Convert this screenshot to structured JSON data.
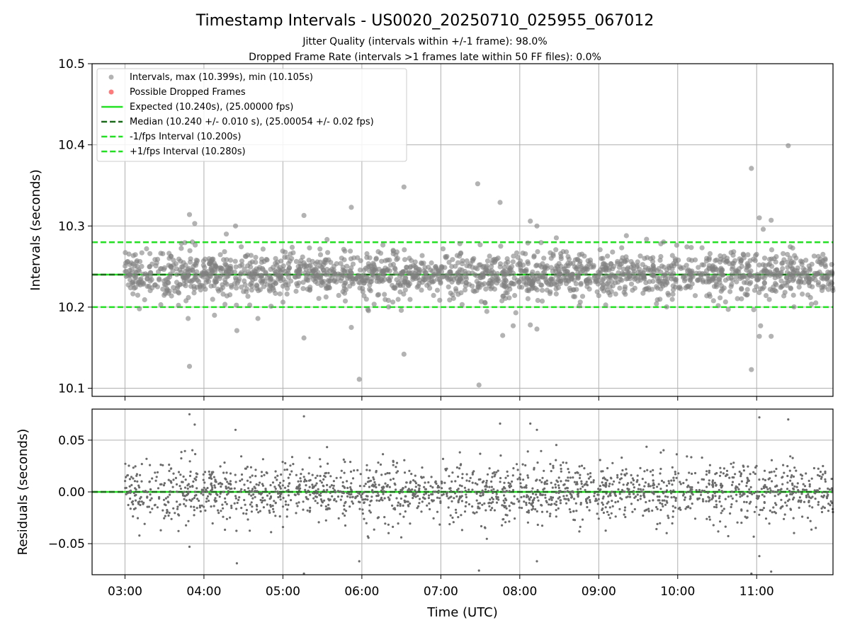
{
  "chart_data": [
    {
      "type": "scatter",
      "title": "Timestamp Intervals - US0020_20250710_025955_067012",
      "subtitle_lines": [
        "Jitter Quality (intervals within +/-1 frame): 98.0%",
        "Dropped Frame Rate (intervals >1 frames late within 50 FF files): 0.0%"
      ],
      "xlabel": "",
      "ylabel": "Intervals (seconds)",
      "xlim": [
        "02:35",
        "11:58"
      ],
      "ylim": [
        10.09,
        10.5
      ],
      "yticks": [
        "10.1",
        "10.2",
        "10.3",
        "10.4",
        "10.5"
      ],
      "grid": true,
      "legend_position": "top-left",
      "legend": [
        {
          "label": "Intervals, max (10.399s), min (10.105s)",
          "kind": "marker",
          "color": "#808080"
        },
        {
          "label": "Possible Dropped Frames",
          "kind": "marker",
          "color": "#ff6b6b"
        },
        {
          "label": "Expected (10.240s), (25.00000 fps)",
          "kind": "solid",
          "color": "#22e022"
        },
        {
          "label": "Median (10.240 +/- 0.010 s), (25.00054 +/- 0.02 fps)",
          "kind": "dashed",
          "color": "#1a6b1a"
        },
        {
          "label": "-1/fps Interval (10.200s)",
          "kind": "dashed",
          "color": "#22e022"
        },
        {
          "label": "+1/fps Interval (10.280s)",
          "kind": "dashed",
          "color": "#22e022"
        }
      ],
      "reference_lines": [
        {
          "name": "expected",
          "y": 10.24,
          "style": "solid",
          "color": "#22e022"
        },
        {
          "name": "median",
          "y": 10.24,
          "style": "dashed",
          "color": "#1a6b1a"
        },
        {
          "name": "minus-one-frame",
          "y": 10.2,
          "style": "dashed",
          "color": "#22e022"
        },
        {
          "name": "plus-one-frame",
          "y": 10.28,
          "style": "dashed",
          "color": "#22e022"
        }
      ],
      "series": [
        {
          "name": "Intervals",
          "color": "#808080",
          "bulk_center": 10.24,
          "bulk_spread": 0.015,
          "time_range": [
            "03:00",
            "11:58"
          ],
          "notable_points": [
            {
              "x": "03:49",
              "y": 10.127
            },
            {
              "x": "03:49",
              "y": 10.314
            },
            {
              "x": "03:53",
              "y": 10.303
            },
            {
              "x": "03:48",
              "y": 10.186
            },
            {
              "x": "04:08",
              "y": 10.19
            },
            {
              "x": "04:17",
              "y": 10.29
            },
            {
              "x": "04:24",
              "y": 10.3
            },
            {
              "x": "04:25",
              "y": 10.171
            },
            {
              "x": "04:41",
              "y": 10.186
            },
            {
              "x": "05:16",
              "y": 10.313
            },
            {
              "x": "05:16",
              "y": 10.162
            },
            {
              "x": "05:52",
              "y": 10.323
            },
            {
              "x": "05:58",
              "y": 10.111
            },
            {
              "x": "05:52",
              "y": 10.175
            },
            {
              "x": "06:32",
              "y": 10.348
            },
            {
              "x": "06:32",
              "y": 10.142
            },
            {
              "x": "07:28",
              "y": 10.352
            },
            {
              "x": "07:29",
              "y": 10.104
            },
            {
              "x": "07:45",
              "y": 10.329
            },
            {
              "x": "07:47",
              "y": 10.165
            },
            {
              "x": "07:57",
              "y": 10.193
            },
            {
              "x": "07:55",
              "y": 10.177
            },
            {
              "x": "08:08",
              "y": 10.306
            },
            {
              "x": "08:08",
              "y": 10.178
            },
            {
              "x": "08:13",
              "y": 10.3
            },
            {
              "x": "08:13",
              "y": 10.173
            },
            {
              "x": "09:21",
              "y": 10.288
            },
            {
              "x": "10:56",
              "y": 10.371
            },
            {
              "x": "10:56",
              "y": 10.123
            },
            {
              "x": "11:02",
              "y": 10.31
            },
            {
              "x": "11:02",
              "y": 10.164
            },
            {
              "x": "11:11",
              "y": 10.307
            },
            {
              "x": "11:11",
              "y": 10.164
            },
            {
              "x": "11:24",
              "y": 10.399
            },
            {
              "x": "11:03",
              "y": 10.177
            },
            {
              "x": "11:05",
              "y": 10.296
            }
          ]
        }
      ]
    },
    {
      "type": "scatter",
      "title": "",
      "xlabel": "Time (UTC)",
      "ylabel": "Residuals (seconds)",
      "xlim": [
        "02:35",
        "11:58"
      ],
      "ylim": [
        -0.08,
        0.08
      ],
      "yticks": [
        "−0.05",
        "0.00",
        "0.05"
      ],
      "xticks": [
        "03:00",
        "04:00",
        "05:00",
        "06:00",
        "07:00",
        "08:00",
        "09:00",
        "10:00",
        "11:00"
      ],
      "grid": true,
      "reference_lines": [
        {
          "name": "zero",
          "y": 0.0,
          "style": "solid",
          "color": "#22e022"
        },
        {
          "name": "median-zero",
          "y": 0.0,
          "style": "dashed",
          "color": "#1a6b1a"
        }
      ],
      "series": [
        {
          "name": "Residuals",
          "color": "#6b6b6b",
          "bulk_center": 0.0,
          "bulk_spread": 0.015,
          "time_range": [
            "03:00",
            "11:58"
          ],
          "notable_points": [
            {
              "x": "03:49",
              "y": 0.075
            },
            {
              "x": "03:53",
              "y": 0.065
            },
            {
              "x": "04:24",
              "y": 0.06
            },
            {
              "x": "05:16",
              "y": 0.073
            },
            {
              "x": "07:45",
              "y": 0.066
            },
            {
              "x": "08:08",
              "y": 0.066
            },
            {
              "x": "08:13",
              "y": 0.06
            },
            {
              "x": "11:24",
              "y": 0.07
            },
            {
              "x": "11:02",
              "y": 0.072
            },
            {
              "x": "03:49",
              "y": -0.053
            },
            {
              "x": "04:25",
              "y": -0.069
            },
            {
              "x": "05:16",
              "y": -0.079
            },
            {
              "x": "05:58",
              "y": -0.067
            },
            {
              "x": "07:29",
              "y": -0.076
            },
            {
              "x": "08:13",
              "y": -0.067
            },
            {
              "x": "10:56",
              "y": -0.079
            },
            {
              "x": "11:02",
              "y": -0.062
            },
            {
              "x": "11:11",
              "y": -0.077
            }
          ]
        }
      ]
    }
  ]
}
